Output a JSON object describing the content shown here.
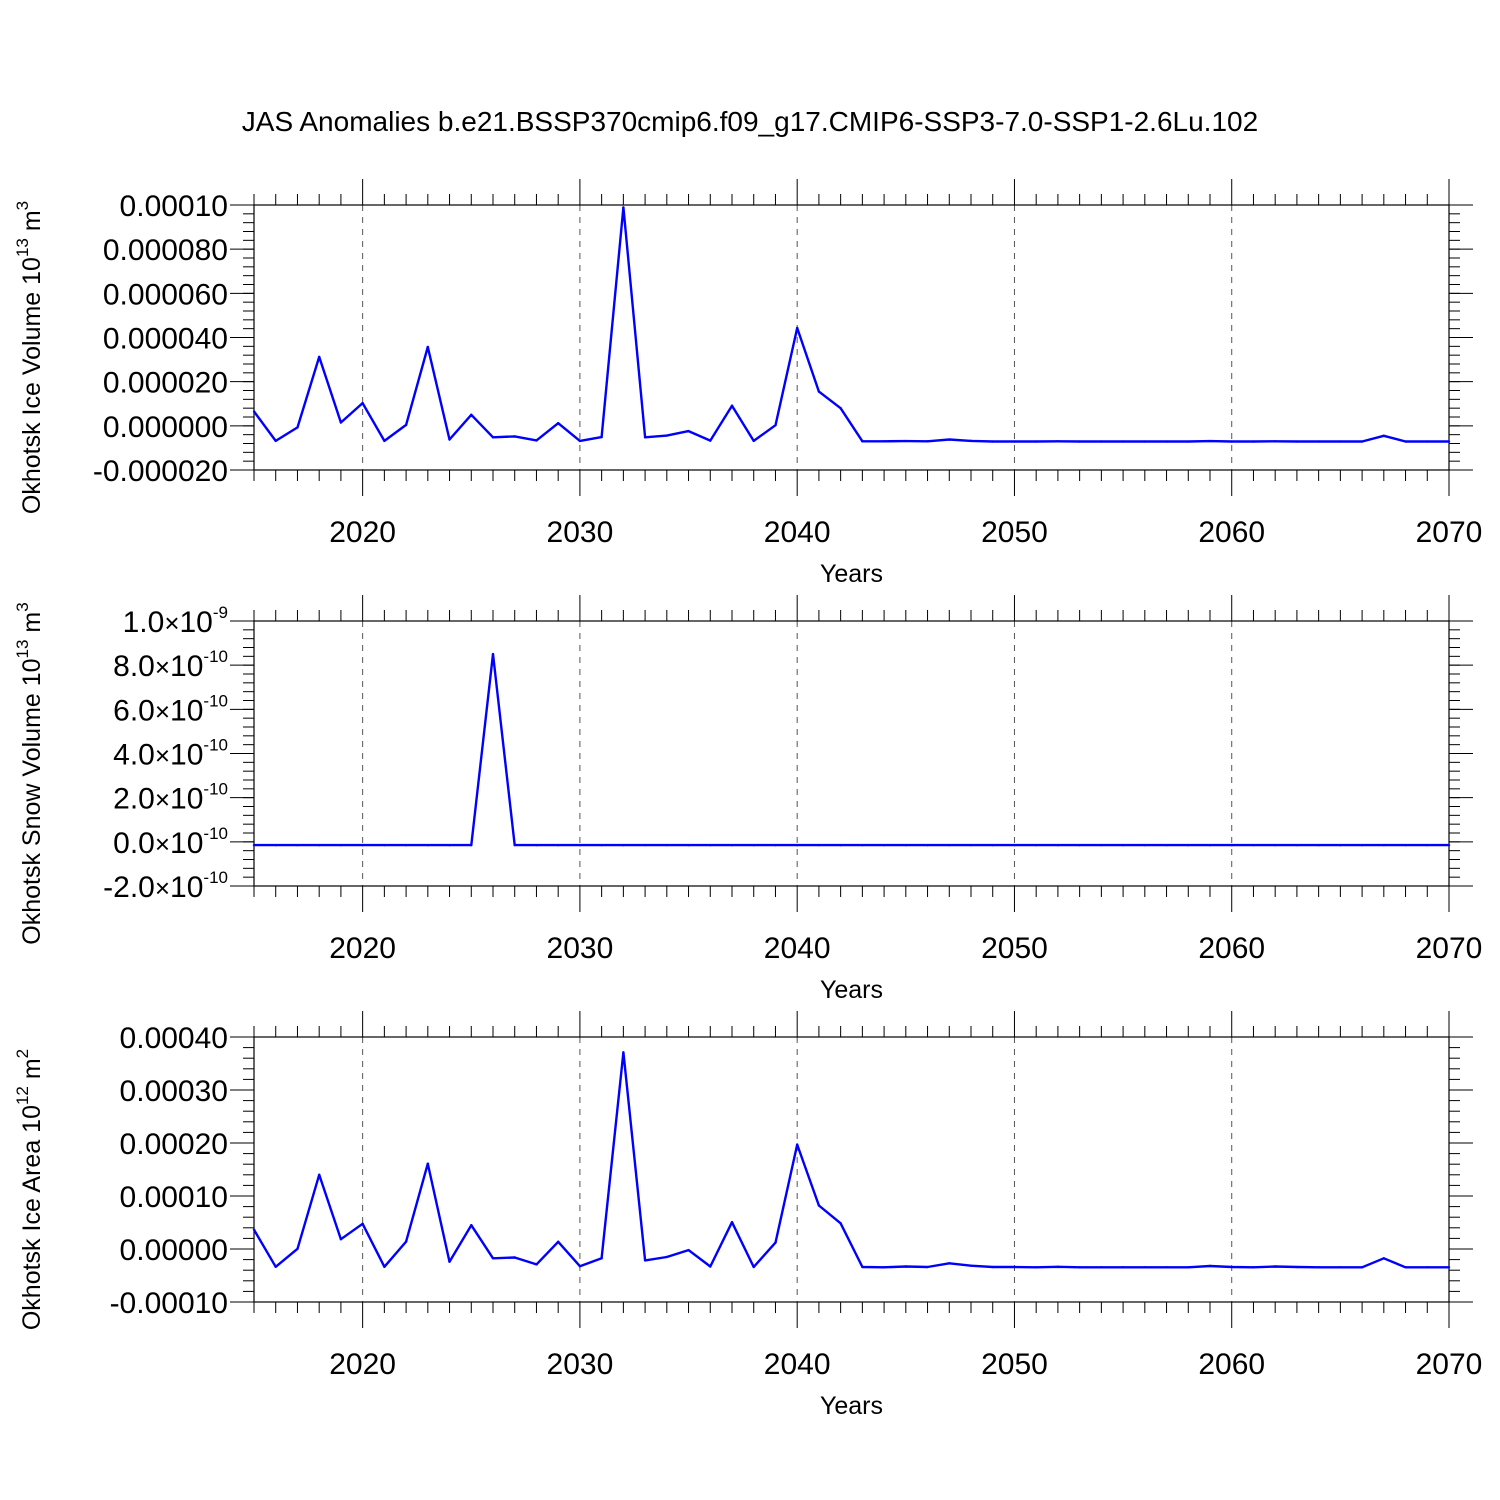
{
  "figure": {
    "title": "JAS Anomalies b.e21.BSSP370cmip6.f09_g17.CMIP6-SSP3-7.0-SSP1-2.6Lu.102"
  },
  "chart_data": [
    {
      "type": "line",
      "id": "ice-volume",
      "ylabel": {
        "text": "Okhotsk Ice Volume 10",
        "sup": "13",
        "unit": " m",
        "unit_sup": "3"
      },
      "xlabel": "Years",
      "xlim": [
        2015,
        2070
      ],
      "ylim": [
        -2e-05,
        0.0001
      ],
      "x_ticks": [
        2020,
        2030,
        2040,
        2050,
        2060,
        2070
      ],
      "y_ticks": [
        {
          "value": -2e-05,
          "label": "-0.000020"
        },
        {
          "value": 0.0,
          "label": "0.000000"
        },
        {
          "value": 2e-05,
          "label": "0.000020"
        },
        {
          "value": 4e-05,
          "label": "0.000040"
        },
        {
          "value": 6e-05,
          "label": "0.000060"
        },
        {
          "value": 8e-05,
          "label": "0.000080"
        },
        {
          "value": 0.0001,
          "label": "0.00010"
        }
      ],
      "y_minor_step": 4e-06,
      "grid_x": true,
      "color": "#0000ff",
      "x": [
        2015,
        2016,
        2017,
        2018,
        2019,
        2020,
        2021,
        2022,
        2023,
        2024,
        2025,
        2026,
        2027,
        2028,
        2029,
        2030,
        2031,
        2032,
        2033,
        2034,
        2035,
        2036,
        2037,
        2038,
        2039,
        2040,
        2041,
        2042,
        2043,
        2044,
        2045,
        2046,
        2047,
        2048,
        2049,
        2050,
        2051,
        2052,
        2053,
        2054,
        2055,
        2056,
        2057,
        2058,
        2059,
        2060,
        2061,
        2062,
        2063,
        2064,
        2065,
        2066,
        2067,
        2068,
        2069,
        2070
      ],
      "values": [
        6.5e-06,
        -6.8e-06,
        -7e-07,
        3.12e-05,
        1.5e-06,
        1.03e-05,
        -6.8e-06,
        4e-07,
        3.57e-05,
        -6.2e-06,
        5e-06,
        -5.2e-06,
        -4.8e-06,
        -6.6e-06,
        1.2e-06,
        -6.8e-06,
        -5.1e-06,
        9.89e-05,
        -5.2e-06,
        -4.4e-06,
        -2.4e-06,
        -6.7e-06,
        9.1e-06,
        -6.8e-06,
        3e-07,
        4.43e-05,
        1.55e-05,
        8e-06,
        -7e-06,
        -7e-06,
        -6.9e-06,
        -7e-06,
        -6.2e-06,
        -6.8e-06,
        -7.1e-06,
        -7.1e-06,
        -7.1e-06,
        -7e-06,
        -7.1e-06,
        -7.1e-06,
        -7.1e-06,
        -7.1e-06,
        -7.1e-06,
        -7.1e-06,
        -6.9e-06,
        -7.1e-06,
        -7.1e-06,
        -7e-06,
        -7.1e-06,
        -7.1e-06,
        -7.1e-06,
        -7.1e-06,
        -4.5e-06,
        -7.1e-06,
        -7.1e-06,
        -7.1e-06
      ]
    },
    {
      "type": "line",
      "id": "snow-volume",
      "ylabel": {
        "text": "Okhotsk Snow Volume 10",
        "sup": "13",
        "unit": " m",
        "unit_sup": "3"
      },
      "xlabel": "Years",
      "xlim": [
        2015,
        2070
      ],
      "ylim": [
        -2e-10,
        1e-09
      ],
      "x_ticks": [
        2020,
        2030,
        2040,
        2050,
        2060,
        2070
      ],
      "y_ticks": [
        {
          "value": -2e-10,
          "mant": "-2.0",
          "exp": "-10"
        },
        {
          "value": 0.0,
          "mant": "0.0",
          "exp": "-10"
        },
        {
          "value": 2e-10,
          "mant": "2.0",
          "exp": "-10"
        },
        {
          "value": 4e-10,
          "mant": "4.0",
          "exp": "-10"
        },
        {
          "value": 6e-10,
          "mant": "6.0",
          "exp": "-10"
        },
        {
          "value": 8e-10,
          "mant": "8.0",
          "exp": "-10"
        },
        {
          "value": 1e-09,
          "mant": "1.0",
          "exp": "-9"
        }
      ],
      "y_tick_base": "10",
      "y_minor_step": 4e-11,
      "grid_x": true,
      "color": "#0000ff",
      "x": [
        2015,
        2016,
        2017,
        2018,
        2019,
        2020,
        2021,
        2022,
        2023,
        2024,
        2025,
        2026,
        2027,
        2028,
        2029,
        2030,
        2031,
        2032,
        2033,
        2034,
        2035,
        2036,
        2037,
        2038,
        2039,
        2040,
        2041,
        2042,
        2043,
        2044,
        2045,
        2046,
        2047,
        2048,
        2049,
        2050,
        2051,
        2052,
        2053,
        2054,
        2055,
        2056,
        2057,
        2058,
        2059,
        2060,
        2061,
        2062,
        2063,
        2064,
        2065,
        2066,
        2067,
        2068,
        2069,
        2070
      ],
      "values": [
        -1.5e-11,
        -1.5e-11,
        -1.5e-11,
        -1.5e-11,
        -1.5e-11,
        -1.5e-11,
        -1.5e-11,
        -1.5e-11,
        -1.5e-11,
        -1.5e-11,
        -1.5e-11,
        8.5e-10,
        -1.5e-11,
        -1.5e-11,
        -1.5e-11,
        -1.5e-11,
        -1.5e-11,
        -1.5e-11,
        -1.5e-11,
        -1.5e-11,
        -1.5e-11,
        -1.5e-11,
        -1.5e-11,
        -1.5e-11,
        -1.5e-11,
        -1.5e-11,
        -1.5e-11,
        -1.5e-11,
        -1.5e-11,
        -1.5e-11,
        -1.5e-11,
        -1.5e-11,
        -1.5e-11,
        -1.5e-11,
        -1.5e-11,
        -1.5e-11,
        -1.5e-11,
        -1.5e-11,
        -1.5e-11,
        -1.5e-11,
        -1.5e-11,
        -1.5e-11,
        -1.5e-11,
        -1.5e-11,
        -1.5e-11,
        -1.5e-11,
        -1.5e-11,
        -1.5e-11,
        -1.5e-11,
        -1.5e-11,
        -1.5e-11,
        -1.5e-11,
        -1.5e-11,
        -1.5e-11,
        -1.5e-11,
        -1.5e-11
      ]
    },
    {
      "type": "line",
      "id": "ice-area",
      "ylabel": {
        "text": "Okhotsk Ice Area 10",
        "sup": "12",
        "unit": " m",
        "unit_sup": "2"
      },
      "xlabel": "Years",
      "xlim": [
        2015,
        2070
      ],
      "ylim": [
        -0.0001,
        0.0004
      ],
      "x_ticks": [
        2020,
        2030,
        2040,
        2050,
        2060,
        2070
      ],
      "y_ticks": [
        {
          "value": -0.0001,
          "label": "-0.00010"
        },
        {
          "value": 0.0,
          "label": "0.00000"
        },
        {
          "value": 0.0001,
          "label": "0.00010"
        },
        {
          "value": 0.0002,
          "label": "0.00020"
        },
        {
          "value": 0.0003,
          "label": "0.00030"
        },
        {
          "value": 0.0004,
          "label": "0.00040"
        }
      ],
      "y_minor_step": 2e-05,
      "grid_x": true,
      "color": "#0000ff",
      "x": [
        2015,
        2016,
        2017,
        2018,
        2019,
        2020,
        2021,
        2022,
        2023,
        2024,
        2025,
        2026,
        2027,
        2028,
        2029,
        2030,
        2031,
        2032,
        2033,
        2034,
        2035,
        2036,
        2037,
        2038,
        2039,
        2040,
        2041,
        2042,
        2043,
        2044,
        2045,
        2046,
        2047,
        2048,
        2049,
        2050,
        2051,
        2052,
        2053,
        2054,
        2055,
        2056,
        2057,
        2058,
        2059,
        2060,
        2061,
        2062,
        2063,
        2064,
        2065,
        2066,
        2067,
        2068,
        2069,
        2070
      ],
      "values": [
        3.65e-05,
        -3.35e-05,
        3e-07,
        0.00014,
        1.85e-05,
        4.75e-05,
        -3.35e-05,
        1.4e-05,
        0.000161,
        -2.4e-05,
        4.5e-05,
        -1.75e-05,
        -1.6e-05,
        -2.9e-05,
        1.35e-05,
        -3.25e-05,
        -1.75e-05,
        0.000371,
        -2.15e-05,
        -1.5e-05,
        -2e-06,
        -3.3e-05,
        5.05e-05,
        -3.4e-05,
        1.2e-05,
        0.000197,
        8.2e-05,
        4.85e-05,
        -3.4e-05,
        -3.45e-05,
        -3.3e-05,
        -3.4e-05,
        -2.7e-05,
        -3.15e-05,
        -3.4e-05,
        -3.4e-05,
        -3.45e-05,
        -3.35e-05,
        -3.45e-05,
        -3.45e-05,
        -3.45e-05,
        -3.45e-05,
        -3.45e-05,
        -3.45e-05,
        -3.2e-05,
        -3.4e-05,
        -3.45e-05,
        -3.3e-05,
        -3.4e-05,
        -3.45e-05,
        -3.45e-05,
        -3.45e-05,
        -1.75e-05,
        -3.45e-05,
        -3.45e-05,
        -3.45e-05
      ]
    }
  ]
}
